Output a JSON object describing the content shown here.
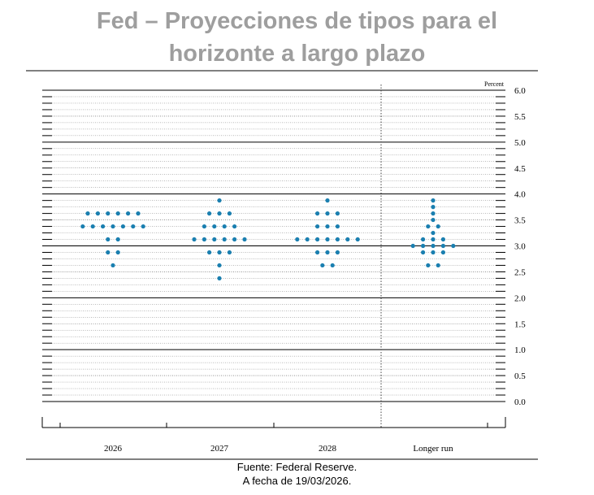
{
  "title": {
    "line1": "Fed – Proyecciones de tipos para el",
    "line2": "horizonte a largo plazo"
  },
  "footer": {
    "source": "Fuente: Federal Reserve.",
    "date": "A fecha de 19/03/2026."
  },
  "colors": {
    "dot": "#1a7fb0",
    "title": "#9e9e9e",
    "axis": "#000000"
  },
  "chart_data": {
    "type": "scatter",
    "title": "Fed – Proyecciones de tipos para el horizonte a largo plazo",
    "ylabel": "Percent",
    "xlabel": "",
    "ylim": [
      0,
      6
    ],
    "yticks": [
      "6.0",
      "5.5",
      "5.0",
      "4.5",
      "4.0",
      "3.5",
      "3.0",
      "2.5",
      "2.0",
      "1.5",
      "1.0",
      "0.5",
      "0.0"
    ],
    "categories": [
      "2026",
      "2027",
      "2028",
      "Longer run"
    ],
    "grid": "solid lines at whole percents, dotted lines at eighths",
    "series": [
      {
        "category": "2026",
        "rows": [
          {
            "value": 3.625,
            "count": 6
          },
          {
            "value": 3.375,
            "count": 7
          },
          {
            "value": 3.125,
            "count": 2
          },
          {
            "value": 2.875,
            "count": 2
          },
          {
            "value": 2.625,
            "count": 1
          }
        ]
      },
      {
        "category": "2027",
        "rows": [
          {
            "value": 3.875,
            "count": 1
          },
          {
            "value": 3.625,
            "count": 3
          },
          {
            "value": 3.375,
            "count": 4
          },
          {
            "value": 3.125,
            "count": 6
          },
          {
            "value": 2.875,
            "count": 3
          },
          {
            "value": 2.625,
            "count": 1
          },
          {
            "value": 2.375,
            "count": 1
          }
        ]
      },
      {
        "category": "2028",
        "rows": [
          {
            "value": 3.875,
            "count": 1
          },
          {
            "value": 3.625,
            "count": 3
          },
          {
            "value": 3.375,
            "count": 3
          },
          {
            "value": 3.125,
            "count": 7
          },
          {
            "value": 2.875,
            "count": 3
          },
          {
            "value": 2.625,
            "count": 2
          }
        ]
      },
      {
        "category": "Longer run",
        "rows": [
          {
            "value": 3.875,
            "count": 1
          },
          {
            "value": 3.75,
            "count": 1
          },
          {
            "value": 3.625,
            "count": 1
          },
          {
            "value": 3.5,
            "count": 1
          },
          {
            "value": 3.375,
            "count": 2
          },
          {
            "value": 3.25,
            "count": 1
          },
          {
            "value": 3.125,
            "count": 3
          },
          {
            "value": 3.0,
            "count": 5
          },
          {
            "value": 2.875,
            "count": 3
          },
          {
            "value": 2.625,
            "count": 2
          }
        ]
      }
    ]
  }
}
